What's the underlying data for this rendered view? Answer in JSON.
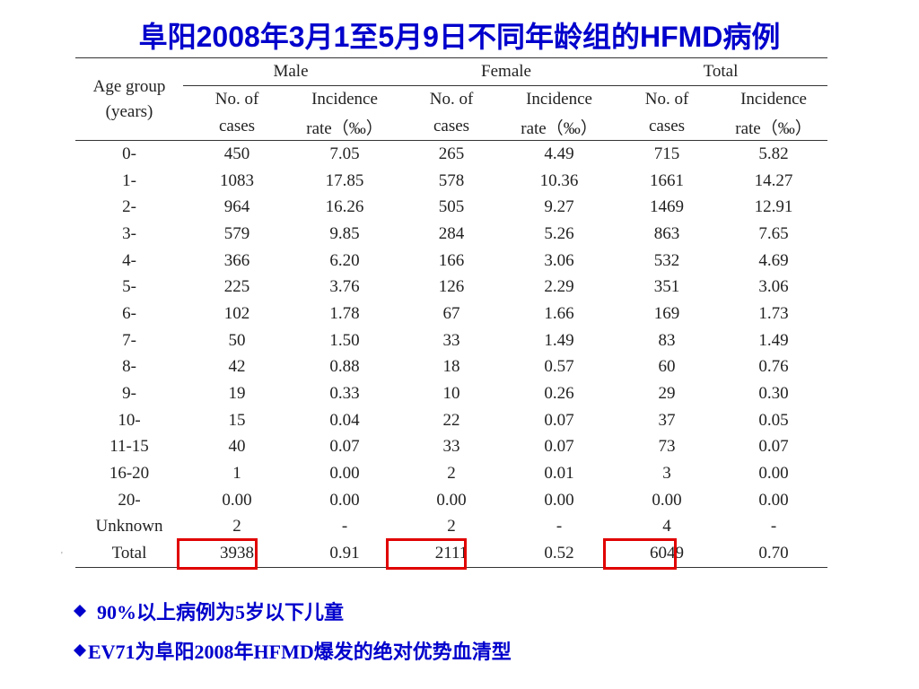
{
  "title": "阜阳2008年3月1至5月9日不同年龄组的HFMD病例",
  "table": {
    "age_group_header": [
      "Age group",
      "(years)"
    ],
    "groups": [
      "Male",
      "Female",
      "Total"
    ],
    "sub_headers": {
      "cases": [
        "No. of",
        "cases"
      ],
      "rate": [
        "Incidence",
        "rate（‰）"
      ]
    },
    "rows": [
      [
        "0-",
        "450",
        "7.05",
        "265",
        "4.49",
        "715",
        "5.82"
      ],
      [
        "1-",
        "1083",
        "17.85",
        "578",
        "10.36",
        "1661",
        "14.27"
      ],
      [
        "2-",
        "964",
        "16.26",
        "505",
        "9.27",
        "1469",
        "12.91"
      ],
      [
        "3-",
        "579",
        "9.85",
        "284",
        "5.26",
        "863",
        "7.65"
      ],
      [
        "4-",
        "366",
        "6.20",
        "166",
        "3.06",
        "532",
        "4.69"
      ],
      [
        "5-",
        "225",
        "3.76",
        "126",
        "2.29",
        "351",
        "3.06"
      ],
      [
        "6-",
        "102",
        "1.78",
        "67",
        "1.66",
        "169",
        "1.73"
      ],
      [
        "7-",
        "50",
        "1.50",
        "33",
        "1.49",
        "83",
        "1.49"
      ],
      [
        "8-",
        "42",
        "0.88",
        "18",
        "0.57",
        "60",
        "0.76"
      ],
      [
        "9-",
        "19",
        "0.33",
        "10",
        "0.26",
        "29",
        "0.30"
      ],
      [
        "10-",
        "15",
        "0.04",
        "22",
        "0.07",
        "37",
        "0.05"
      ],
      [
        "11-15",
        "40",
        "0.07",
        "33",
        "0.07",
        "73",
        "0.07"
      ],
      [
        "16-20",
        "1",
        "0.00",
        "2",
        "0.01",
        "3",
        "0.00"
      ],
      [
        "20-",
        "0.00",
        "0.00",
        "0.00",
        "0.00",
        "0.00",
        "0.00"
      ],
      [
        "Unknown",
        "2",
        "-",
        "2",
        "-",
        "4",
        "-"
      ],
      [
        "Total",
        "3938",
        "0.91",
        "2111",
        "0.52",
        "6049",
        "0.70"
      ]
    ]
  },
  "bullets": [
    "90%以上病例为5岁以下儿童",
    "EV71为阜阳2008年HFMD爆发的绝对优势血清型"
  ],
  "colors": {
    "title": "#0000cc",
    "bullets": "#0000cc",
    "highlight": "#e00000"
  },
  "icons": {
    "bullet": "diamond-icon"
  }
}
